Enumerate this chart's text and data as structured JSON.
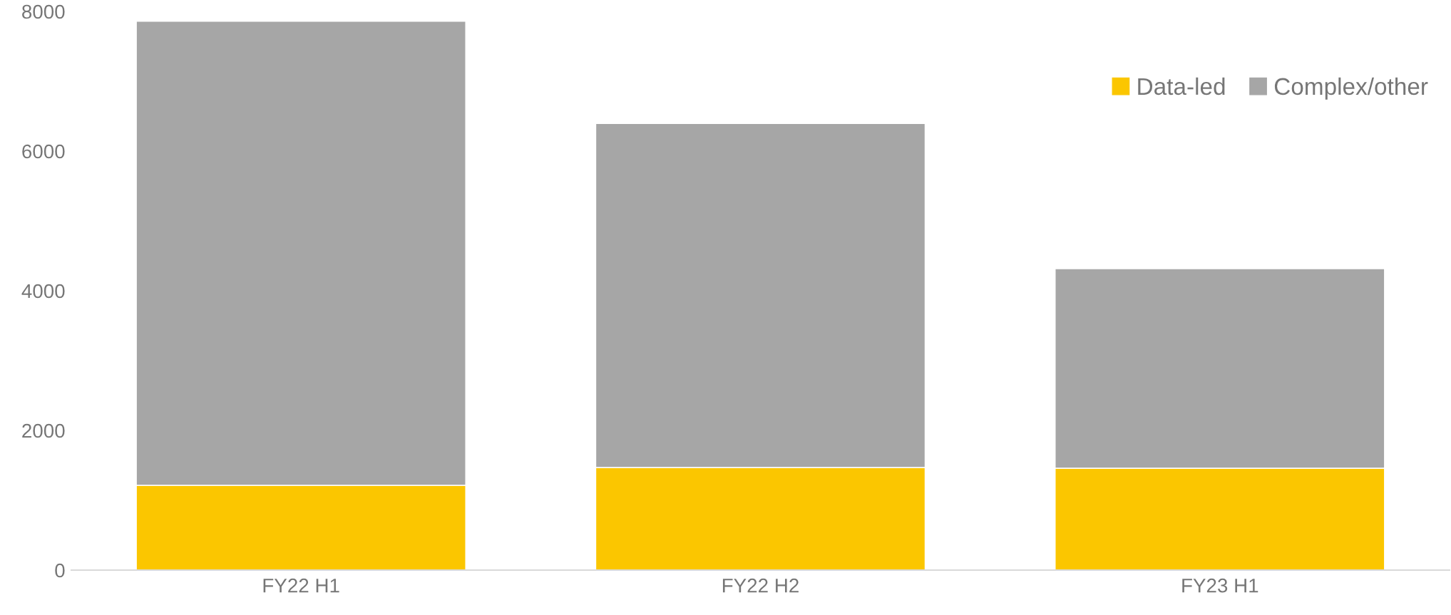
{
  "chart_data": {
    "type": "bar",
    "stacked": true,
    "categories": [
      "FY22 H1",
      "FY22 H2",
      "FY23 H1"
    ],
    "series": [
      {
        "name": "Data-led",
        "color": "#fbc600",
        "values": [
          1214,
          1470,
          1459
        ]
      },
      {
        "name": "Complex/other",
        "color": "#a6a6a6",
        "values": [
          6646,
          4924,
          2857
        ]
      }
    ],
    "ylim": [
      0,
      8000
    ],
    "yticks": [
      0,
      2000,
      4000,
      6000,
      8000
    ],
    "grid": false,
    "legend": "top right"
  }
}
